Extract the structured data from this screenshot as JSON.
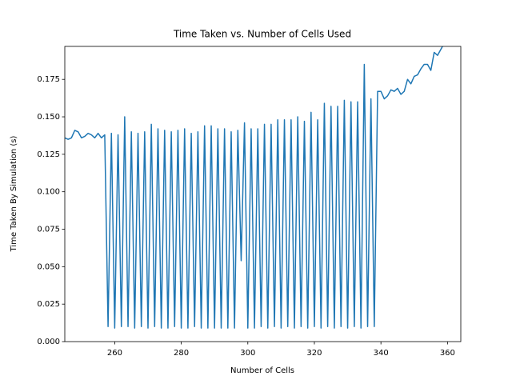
{
  "chart_data": {
    "type": "line",
    "title": "Time Taken vs. Number of Cells Used",
    "xlabel": "Number of Cells",
    "ylabel": "Time Taken By Simulation (s)",
    "color": "#1f77b4",
    "xlim": [
      245,
      364
    ],
    "ylim": [
      0,
      0.197
    ],
    "xticks": [
      260,
      280,
      300,
      320,
      340,
      360
    ],
    "yticks": [
      {
        "value": 0,
        "label": "0.000"
      },
      {
        "value": 0.025,
        "label": "0.025"
      },
      {
        "value": 0.05,
        "label": "0.050"
      },
      {
        "value": 0.075,
        "label": "0.075"
      },
      {
        "value": 0.1,
        "label": "0.100"
      },
      {
        "value": 0.125,
        "label": "0.125"
      },
      {
        "value": 0.15,
        "label": "0.150"
      },
      {
        "value": 0.175,
        "label": "0.175"
      }
    ],
    "x": [
      245,
      246,
      247,
      248,
      249,
      250,
      251,
      252,
      253,
      254,
      255,
      256,
      257,
      258,
      259,
      260,
      261,
      262,
      263,
      264,
      265,
      266,
      267,
      268,
      269,
      270,
      271,
      272,
      273,
      274,
      275,
      276,
      277,
      278,
      279,
      280,
      281,
      282,
      283,
      284,
      285,
      286,
      287,
      288,
      289,
      290,
      291,
      292,
      293,
      294,
      295,
      296,
      297,
      298,
      299,
      300,
      301,
      302,
      303,
      304,
      305,
      306,
      307,
      308,
      309,
      310,
      311,
      312,
      313,
      314,
      315,
      316,
      317,
      318,
      319,
      320,
      321,
      322,
      323,
      324,
      325,
      326,
      327,
      328,
      329,
      330,
      331,
      332,
      333,
      334,
      335,
      336,
      337,
      338,
      339,
      340,
      341,
      342,
      343,
      344,
      345,
      346,
      347,
      348,
      349,
      350,
      351,
      352,
      353,
      354,
      355,
      356,
      357,
      358,
      359
    ],
    "values": [
      0.136,
      0.135,
      0.136,
      0.141,
      0.14,
      0.136,
      0.137,
      0.139,
      0.138,
      0.136,
      0.139,
      0.136,
      0.138,
      0.01,
      0.139,
      0.009,
      0.138,
      0.01,
      0.15,
      0.01,
      0.14,
      0.009,
      0.139,
      0.01,
      0.14,
      0.009,
      0.145,
      0.01,
      0.142,
      0.009,
      0.141,
      0.009,
      0.14,
      0.01,
      0.141,
      0.009,
      0.142,
      0.009,
      0.139,
      0.01,
      0.14,
      0.009,
      0.144,
      0.009,
      0.144,
      0.009,
      0.142,
      0.009,
      0.142,
      0.009,
      0.14,
      0.009,
      0.141,
      0.054,
      0.146,
      0.009,
      0.142,
      0.009,
      0.142,
      0.01,
      0.145,
      0.009,
      0.145,
      0.01,
      0.148,
      0.009,
      0.148,
      0.01,
      0.148,
      0.009,
      0.15,
      0.01,
      0.147,
      0.009,
      0.153,
      0.01,
      0.148,
      0.009,
      0.159,
      0.01,
      0.157,
      0.009,
      0.157,
      0.01,
      0.161,
      0.009,
      0.16,
      0.01,
      0.16,
      0.009,
      0.185,
      0.01,
      0.162,
      0.01,
      0.167,
      0.167,
      0.162,
      0.164,
      0.168,
      0.167,
      0.169,
      0.165,
      0.167,
      0.175,
      0.172,
      0.177,
      0.178,
      0.182,
      0.185,
      0.185,
      0.181,
      0.193,
      0.191,
      0.195,
      0.199
    ]
  }
}
